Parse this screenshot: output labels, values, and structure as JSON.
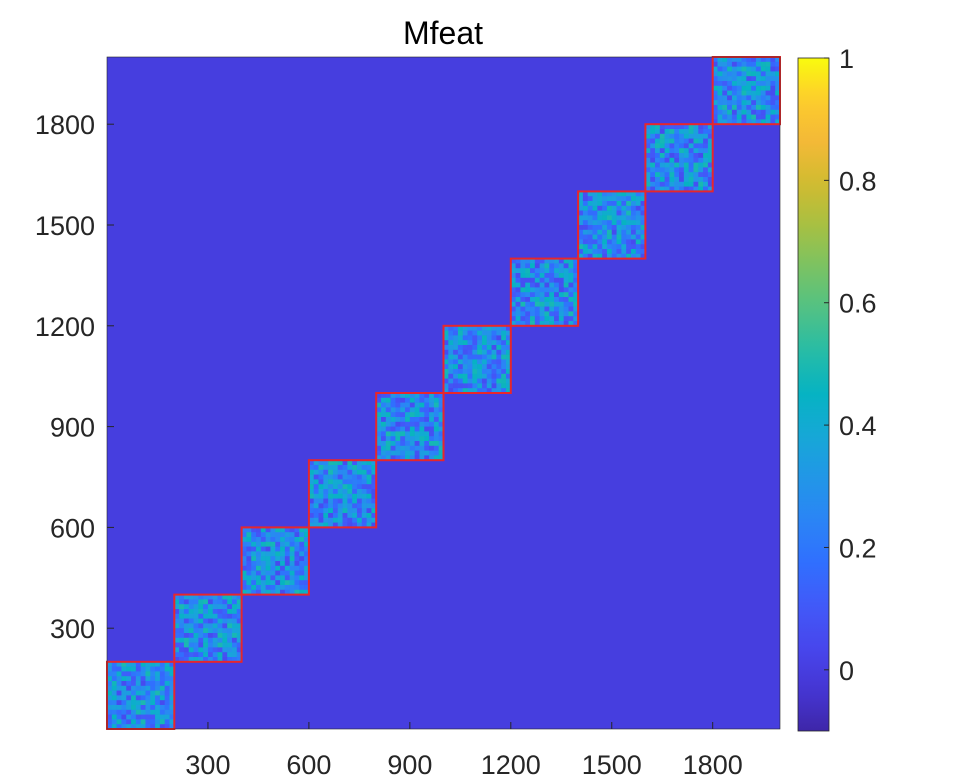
{
  "chart_data": {
    "type": "heatmap",
    "title": "Mfeat",
    "xlabel": "",
    "ylabel": "",
    "n": 2000,
    "xlim": [
      0,
      2000
    ],
    "ylim": [
      0,
      2000
    ],
    "x_ticks": [
      300,
      600,
      900,
      1200,
      1500,
      1800
    ],
    "y_ticks": [
      300,
      600,
      900,
      1200,
      1500,
      1800
    ],
    "x_tick_labels": [
      "300",
      "600",
      "900",
      "1200",
      "1500",
      "1800"
    ],
    "y_tick_labels": [
      "300",
      "600",
      "900",
      "1200",
      "1500",
      "1800"
    ],
    "clusters": [
      {
        "start": 0,
        "end": 200
      },
      {
        "start": 200,
        "end": 400
      },
      {
        "start": 400,
        "end": 600
      },
      {
        "start": 600,
        "end": 800
      },
      {
        "start": 800,
        "end": 1000
      },
      {
        "start": 1000,
        "end": 1200
      },
      {
        "start": 1200,
        "end": 1400
      },
      {
        "start": 1400,
        "end": 1600
      },
      {
        "start": 1600,
        "end": 1800
      },
      {
        "start": 1800,
        "end": 2000
      }
    ],
    "background_value": 0,
    "block_value_range": [
      0,
      1
    ],
    "cluster_outline_color": "#e8262b",
    "colorbar": {
      "colormap": "parula",
      "clim": [
        -0.1,
        1
      ],
      "ticks": [
        0,
        0.2,
        0.4,
        0.6,
        0.8,
        1
      ],
      "tick_labels": [
        "0",
        "0.2",
        "0.4",
        "0.6",
        "0.8",
        "1"
      ]
    },
    "grid": false,
    "legend": "none"
  }
}
